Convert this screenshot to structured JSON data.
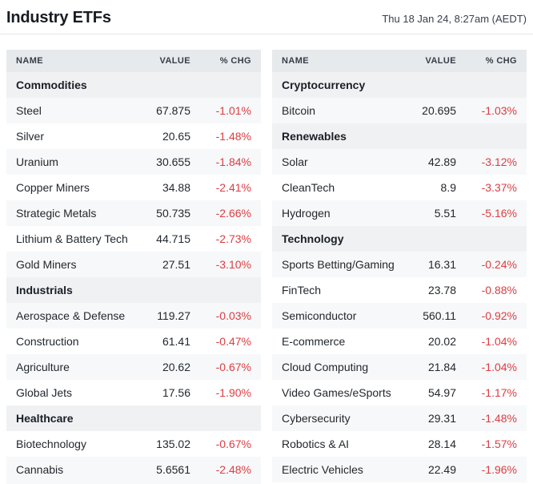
{
  "header": {
    "title": "Industry ETFs",
    "timestamp": "Thu 18 Jan 24, 8:27am (AEDT)"
  },
  "columns": {
    "name": "NAME",
    "value": "VALUE",
    "chg": "% CHG"
  },
  "colors": {
    "negative": "#dc3d43",
    "header_bg": "#e7eaed",
    "section_bg": "#eff1f3",
    "stripe_bg": "#f7f8f9"
  },
  "tables": [
    {
      "rows": [
        {
          "type": "section",
          "label": "Commodities"
        },
        {
          "type": "item",
          "name": "Steel",
          "value": "67.875",
          "chg": "-1.01%"
        },
        {
          "type": "item",
          "name": "Silver",
          "value": "20.65",
          "chg": "-1.48%"
        },
        {
          "type": "item",
          "name": "Uranium",
          "value": "30.655",
          "chg": "-1.84%"
        },
        {
          "type": "item",
          "name": "Copper Miners",
          "value": "34.88",
          "chg": "-2.41%"
        },
        {
          "type": "item",
          "name": "Strategic Metals",
          "value": "50.735",
          "chg": "-2.66%"
        },
        {
          "type": "item",
          "name": "Lithium & Battery Tech",
          "value": "44.715",
          "chg": "-2.73%"
        },
        {
          "type": "item",
          "name": "Gold Miners",
          "value": "27.51",
          "chg": "-3.10%"
        },
        {
          "type": "section",
          "label": "Industrials"
        },
        {
          "type": "item",
          "name": "Aerospace & Defense",
          "value": "119.27",
          "chg": "-0.03%"
        },
        {
          "type": "item",
          "name": "Construction",
          "value": "61.41",
          "chg": "-0.47%"
        },
        {
          "type": "item",
          "name": "Agriculture",
          "value": "20.62",
          "chg": "-0.67%"
        },
        {
          "type": "item",
          "name": "Global Jets",
          "value": "17.56",
          "chg": "-1.90%"
        },
        {
          "type": "section",
          "label": "Healthcare"
        },
        {
          "type": "item",
          "name": "Biotechnology",
          "value": "135.02",
          "chg": "-0.67%"
        },
        {
          "type": "item",
          "name": "Cannabis",
          "value": "5.6561",
          "chg": "-2.48%"
        }
      ]
    },
    {
      "rows": [
        {
          "type": "section",
          "label": "Cryptocurrency"
        },
        {
          "type": "item",
          "name": "Bitcoin",
          "value": "20.695",
          "chg": "-1.03%"
        },
        {
          "type": "section",
          "label": "Renewables"
        },
        {
          "type": "item",
          "name": "Solar",
          "value": "42.89",
          "chg": "-3.12%"
        },
        {
          "type": "item",
          "name": "CleanTech",
          "value": "8.9",
          "chg": "-3.37%"
        },
        {
          "type": "item",
          "name": "Hydrogen",
          "value": "5.51",
          "chg": "-5.16%"
        },
        {
          "type": "section",
          "label": "Technology"
        },
        {
          "type": "item",
          "name": "Sports Betting/Gaming",
          "value": "16.31",
          "chg": "-0.24%"
        },
        {
          "type": "item",
          "name": "FinTech",
          "value": "23.78",
          "chg": "-0.88%"
        },
        {
          "type": "item",
          "name": "Semiconductor",
          "value": "560.11",
          "chg": "-0.92%"
        },
        {
          "type": "item",
          "name": "E-commerce",
          "value": "20.02",
          "chg": "-1.04%"
        },
        {
          "type": "item",
          "name": "Cloud Computing",
          "value": "21.84",
          "chg": "-1.04%"
        },
        {
          "type": "item",
          "name": "Video Games/eSports",
          "value": "54.97",
          "chg": "-1.17%"
        },
        {
          "type": "item",
          "name": "Cybersecurity",
          "value": "29.31",
          "chg": "-1.48%"
        },
        {
          "type": "item",
          "name": "Robotics & AI",
          "value": "28.14",
          "chg": "-1.57%"
        },
        {
          "type": "item",
          "name": "Electric Vehicles",
          "value": "22.49",
          "chg": "-1.96%"
        }
      ]
    }
  ]
}
